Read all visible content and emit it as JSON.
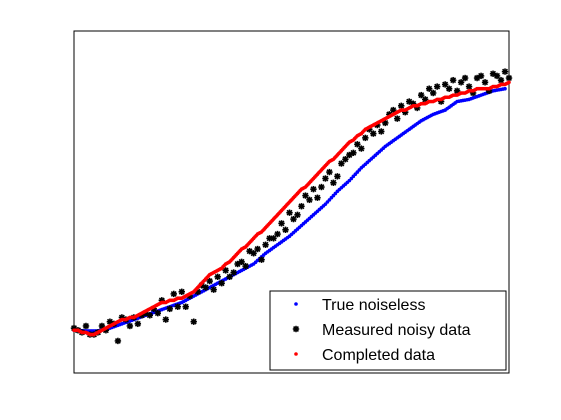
{
  "chart_data": {
    "type": "scatter",
    "xlim": [
      1,
      110
    ],
    "ylim": [
      -0.2,
      1.4
    ],
    "grid": false,
    "legend": {
      "position": "bottom-right",
      "entries": [
        "True noiseless",
        "Measured noisy data",
        "Completed data"
      ]
    },
    "colors": {
      "true": "#0000ff",
      "measured": "#000000",
      "completed": "#ff0000"
    },
    "true_curve": {
      "x": [
        1,
        4,
        7,
        10,
        13,
        16,
        19,
        22,
        25,
        28,
        31,
        34,
        37,
        40,
        43,
        46,
        49,
        52,
        55,
        58,
        61,
        64,
        67,
        70,
        73,
        76,
        79,
        82,
        85,
        88,
        91,
        94,
        97,
        100,
        103,
        106,
        109
      ],
      "y": [
        0.0,
        -0.003,
        -0.003,
        0.01,
        0.03,
        0.05,
        0.07,
        0.09,
        0.11,
        0.13,
        0.16,
        0.19,
        0.22,
        0.25,
        0.28,
        0.31,
        0.36,
        0.4,
        0.44,
        0.49,
        0.54,
        0.59,
        0.65,
        0.7,
        0.76,
        0.81,
        0.86,
        0.9,
        0.94,
        0.98,
        1.01,
        1.03,
        1.07,
        1.08,
        1.1,
        1.12,
        1.13
      ]
    },
    "measured_noisy": {
      "x": [
        1,
        2,
        3,
        4,
        5,
        6,
        7,
        8,
        9,
        10,
        11,
        12,
        13,
        14,
        15,
        16,
        17,
        18,
        19,
        20,
        21,
        22,
        23,
        24,
        25,
        26,
        27,
        28,
        29,
        30,
        31,
        32,
        33,
        34,
        35,
        36,
        37,
        38,
        39,
        40,
        41,
        42,
        43,
        44,
        45,
        46,
        47,
        48,
        49,
        50,
        51,
        52,
        53,
        54,
        55,
        56,
        57,
        58,
        59,
        60,
        61,
        62,
        63,
        64,
        65,
        66,
        67,
        68,
        69,
        70,
        71,
        72,
        73,
        74,
        75,
        76,
        77,
        78,
        79,
        80,
        81,
        82,
        83,
        84,
        85,
        86,
        87,
        88,
        89,
        90,
        91,
        92,
        93,
        94,
        95,
        96,
        97,
        98,
        99,
        100,
        101,
        102,
        103,
        104,
        105,
        106,
        107,
        108,
        109,
        110
      ],
      "y": [
        0.01,
        0.0,
        -0.01,
        0.02,
        -0.02,
        -0.02,
        -0.01,
        0.02,
        0.0,
        0.04,
        0.03,
        -0.05,
        0.06,
        0.05,
        0.02,
        0.06,
        0.03,
        0.07,
        0.08,
        0.07,
        0.1,
        0.08,
        0.14,
        0.05,
        0.1,
        0.17,
        0.11,
        0.18,
        0.11,
        0.16,
        0.04,
        0.18,
        0.21,
        0.2,
        0.23,
        0.19,
        0.25,
        0.22,
        0.28,
        0.25,
        0.27,
        0.31,
        0.32,
        0.3,
        0.37,
        0.36,
        0.38,
        0.33,
        0.4,
        0.43,
        0.43,
        0.45,
        0.5,
        0.47,
        0.55,
        0.52,
        0.54,
        0.58,
        0.63,
        0.61,
        0.66,
        0.62,
        0.67,
        0.71,
        0.74,
        0.69,
        0.72,
        0.78,
        0.8,
        0.82,
        0.83,
        0.87,
        0.85,
        0.9,
        0.94,
        0.92,
        0.96,
        0.93,
        0.97,
        1.01,
        1.03,
        0.99,
        1.05,
        1.02,
        1.07,
        1.06,
        1.04,
        1.1,
        1.08,
        1.13,
        1.11,
        1.14,
        1.07,
        1.15,
        1.13,
        1.17,
        1.12,
        1.16,
        1.18,
        1.14,
        1.11,
        1.18,
        1.19,
        1.16,
        1.12,
        1.2,
        1.19,
        1.17,
        1.21,
        1.18
      ]
    },
    "completed": {
      "x": [
        1,
        2,
        3,
        4,
        5,
        6,
        7,
        8,
        9,
        10,
        11,
        12,
        13,
        14,
        15,
        16,
        17,
        18,
        19,
        20,
        21,
        22,
        23,
        24,
        25,
        26,
        27,
        28,
        29,
        30,
        31,
        32,
        33,
        34,
        35,
        36,
        37,
        38,
        39,
        40,
        41,
        42,
        43,
        44,
        45,
        46,
        47,
        48,
        49,
        50,
        51,
        52,
        53,
        54,
        55,
        56,
        57,
        58,
        59,
        60,
        61,
        62,
        63,
        64,
        65,
        66,
        67,
        68,
        69,
        70,
        71,
        72,
        73,
        74,
        75,
        76,
        77,
        78,
        79,
        80,
        81,
        82,
        83,
        84,
        85,
        86,
        87,
        88,
        89,
        90,
        91,
        92,
        93,
        94,
        95,
        96,
        97,
        98,
        99,
        100,
        101,
        102,
        103,
        104,
        105,
        106,
        107,
        108,
        109,
        110
      ],
      "y": [
        0.0,
        0.0,
        -0.01,
        -0.01,
        -0.02,
        -0.02,
        -0.01,
        0.0,
        0.01,
        0.02,
        0.03,
        0.04,
        0.05,
        0.05,
        0.06,
        0.06,
        0.07,
        0.08,
        0.09,
        0.1,
        0.11,
        0.12,
        0.13,
        0.13,
        0.14,
        0.14,
        0.15,
        0.15,
        0.16,
        0.17,
        0.18,
        0.2,
        0.22,
        0.24,
        0.26,
        0.27,
        0.28,
        0.29,
        0.31,
        0.32,
        0.34,
        0.36,
        0.38,
        0.39,
        0.41,
        0.43,
        0.45,
        0.46,
        0.48,
        0.5,
        0.52,
        0.54,
        0.56,
        0.58,
        0.6,
        0.62,
        0.64,
        0.66,
        0.67,
        0.69,
        0.71,
        0.73,
        0.75,
        0.77,
        0.79,
        0.8,
        0.82,
        0.84,
        0.86,
        0.88,
        0.89,
        0.91,
        0.92,
        0.94,
        0.95,
        0.96,
        0.97,
        0.98,
        0.99,
        1.0,
        1.01,
        1.02,
        1.03,
        1.03,
        1.04,
        1.05,
        1.05,
        1.06,
        1.06,
        1.07,
        1.07,
        1.08,
        1.08,
        1.09,
        1.09,
        1.1,
        1.1,
        1.11,
        1.11,
        1.12,
        1.12,
        1.13,
        1.13,
        1.13,
        1.13,
        1.14,
        1.14,
        1.15,
        1.15,
        1.16
      ]
    }
  }
}
